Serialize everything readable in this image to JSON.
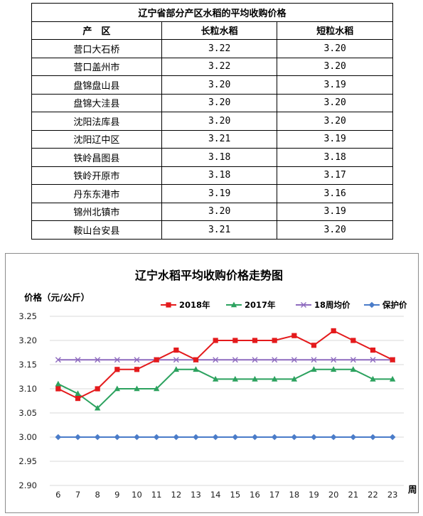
{
  "table": {
    "title": "辽宁省部分产区水稻的平均收购价格",
    "headers": [
      "产　区",
      "长粒水稻",
      "短粒水稻"
    ],
    "rows": [
      [
        "营口大石桥",
        "3.22",
        "3.20"
      ],
      [
        "营口盖州市",
        "3.22",
        "3.20"
      ],
      [
        "盘锦盘山县",
        "3.20",
        "3.19"
      ],
      [
        "盘锦大洼县",
        "3.20",
        "3.20"
      ],
      [
        "沈阳法库县",
        "3.20",
        "3.20"
      ],
      [
        "沈阳辽中区",
        "3.21",
        "3.19"
      ],
      [
        "铁岭昌图县",
        "3.18",
        "3.18"
      ],
      [
        "铁岭开原市",
        "3.18",
        "3.17"
      ],
      [
        "丹东东港市",
        "3.19",
        "3.16"
      ],
      [
        "锦州北镇市",
        "3.20",
        "3.19"
      ],
      [
        "鞍山台安县",
        "3.21",
        "3.20"
      ]
    ]
  },
  "chart_data": {
    "type": "line",
    "title": "辽宁水稻平均收购价格走势图",
    "ylabel": "价格（元/公斤）",
    "xlabel": "周",
    "x": [
      6,
      7,
      8,
      9,
      10,
      11,
      12,
      13,
      14,
      15,
      16,
      17,
      18,
      19,
      20,
      21,
      22,
      23
    ],
    "ylim": [
      2.9,
      3.25
    ],
    "yticks": [
      "3.25",
      "3.20",
      "3.15",
      "3.10",
      "3.05",
      "3.00",
      "2.95",
      "2.90"
    ],
    "grid": "horizontal",
    "legend_position": "top-right",
    "series": [
      {
        "name": "2018年",
        "color": "#e41a1c",
        "marker": "square",
        "values": [
          3.1,
          3.08,
          3.1,
          3.14,
          3.14,
          3.16,
          3.18,
          3.16,
          3.2,
          3.2,
          3.2,
          3.2,
          3.21,
          3.19,
          3.22,
          3.2,
          3.18,
          3.16
        ]
      },
      {
        "name": "2017年",
        "color": "#2ca25f",
        "marker": "triangle",
        "values": [
          3.11,
          3.09,
          3.06,
          3.1,
          3.1,
          3.1,
          3.14,
          3.14,
          3.12,
          3.12,
          3.12,
          3.12,
          3.12,
          3.14,
          3.14,
          3.14,
          3.12,
          3.12
        ]
      },
      {
        "name": "18周均价",
        "color": "#8e6bbf",
        "marker": "x",
        "values": [
          3.16,
          3.16,
          3.16,
          3.16,
          3.16,
          3.16,
          3.16,
          3.16,
          3.16,
          3.16,
          3.16,
          3.16,
          3.16,
          3.16,
          3.16,
          3.16,
          3.16,
          3.16
        ]
      },
      {
        "name": "保护价",
        "color": "#4a7cc9",
        "marker": "diamond",
        "values": [
          3.0,
          3.0,
          3.0,
          3.0,
          3.0,
          3.0,
          3.0,
          3.0,
          3.0,
          3.0,
          3.0,
          3.0,
          3.0,
          3.0,
          3.0,
          3.0,
          3.0,
          3.0
        ]
      }
    ]
  }
}
